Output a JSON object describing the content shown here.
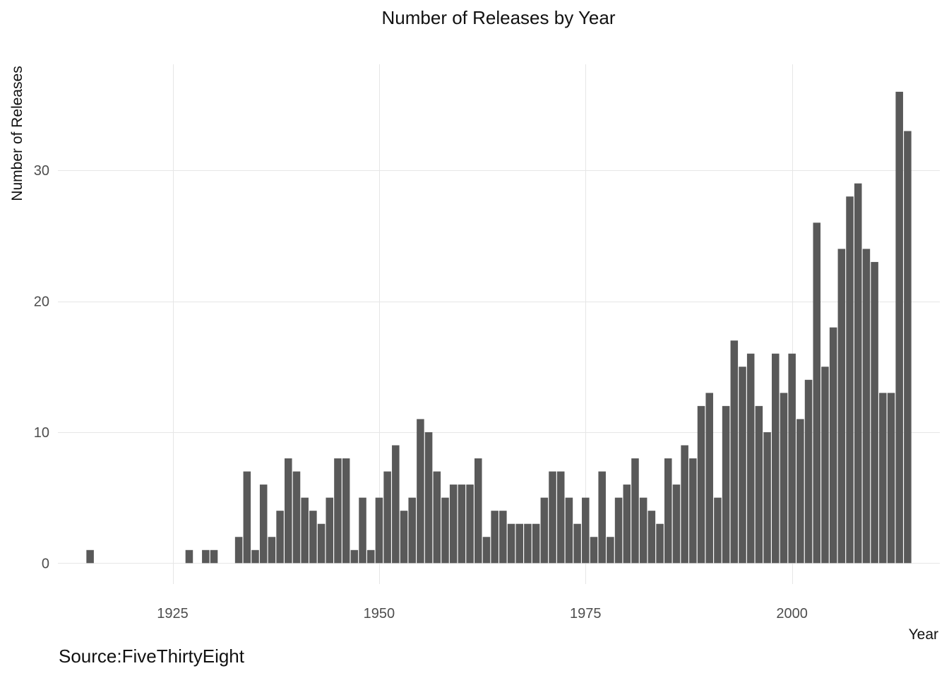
{
  "chart_data": {
    "type": "bar",
    "title": "Number of Releases by Year",
    "xlabel": "Year",
    "ylabel": "Number of Releases",
    "caption": "Source:FiveThirtyEight",
    "xlim": [
      1911.1,
      2017.9
    ],
    "ylim": [
      -1.6,
      38.1
    ],
    "x_ticks": [
      1925,
      1950,
      1975,
      2000
    ],
    "y_ticks": [
      0,
      10,
      20,
      30
    ],
    "grid": true,
    "bar_color": "#595959",
    "x": [
      1915,
      1927,
      1929,
      1930,
      1933,
      1934,
      1935,
      1936,
      1937,
      1938,
      1939,
      1940,
      1941,
      1942,
      1943,
      1944,
      1945,
      1946,
      1947,
      1948,
      1949,
      1950,
      1951,
      1952,
      1953,
      1954,
      1955,
      1956,
      1957,
      1958,
      1959,
      1960,
      1961,
      1962,
      1963,
      1964,
      1965,
      1966,
      1967,
      1968,
      1969,
      1970,
      1971,
      1972,
      1973,
      1974,
      1975,
      1976,
      1977,
      1978,
      1979,
      1980,
      1981,
      1982,
      1983,
      1984,
      1985,
      1986,
      1987,
      1988,
      1989,
      1990,
      1991,
      1992,
      1993,
      1994,
      1995,
      1996,
      1997,
      1998,
      1999,
      2000,
      2001,
      2002,
      2003,
      2004,
      2005,
      2006,
      2007,
      2008,
      2009,
      2010,
      2011,
      2012,
      2013,
      2014
    ],
    "values": [
      1,
      1,
      1,
      1,
      2,
      7,
      1,
      6,
      2,
      4,
      8,
      7,
      5,
      4,
      3,
      5,
      8,
      8,
      1,
      5,
      1,
      5,
      7,
      9,
      4,
      5,
      11,
      10,
      7,
      5,
      6,
      6,
      6,
      8,
      2,
      4,
      4,
      3,
      3,
      3,
      3,
      5,
      7,
      7,
      5,
      3,
      5,
      2,
      7,
      2,
      5,
      6,
      8,
      5,
      4,
      3,
      8,
      6,
      9,
      8,
      12,
      13,
      5,
      12,
      17,
      15,
      16,
      12,
      10,
      16,
      13,
      16,
      11,
      14,
      26,
      15,
      18,
      24,
      28,
      29,
      24,
      23,
      13,
      13,
      36,
      33
    ]
  }
}
